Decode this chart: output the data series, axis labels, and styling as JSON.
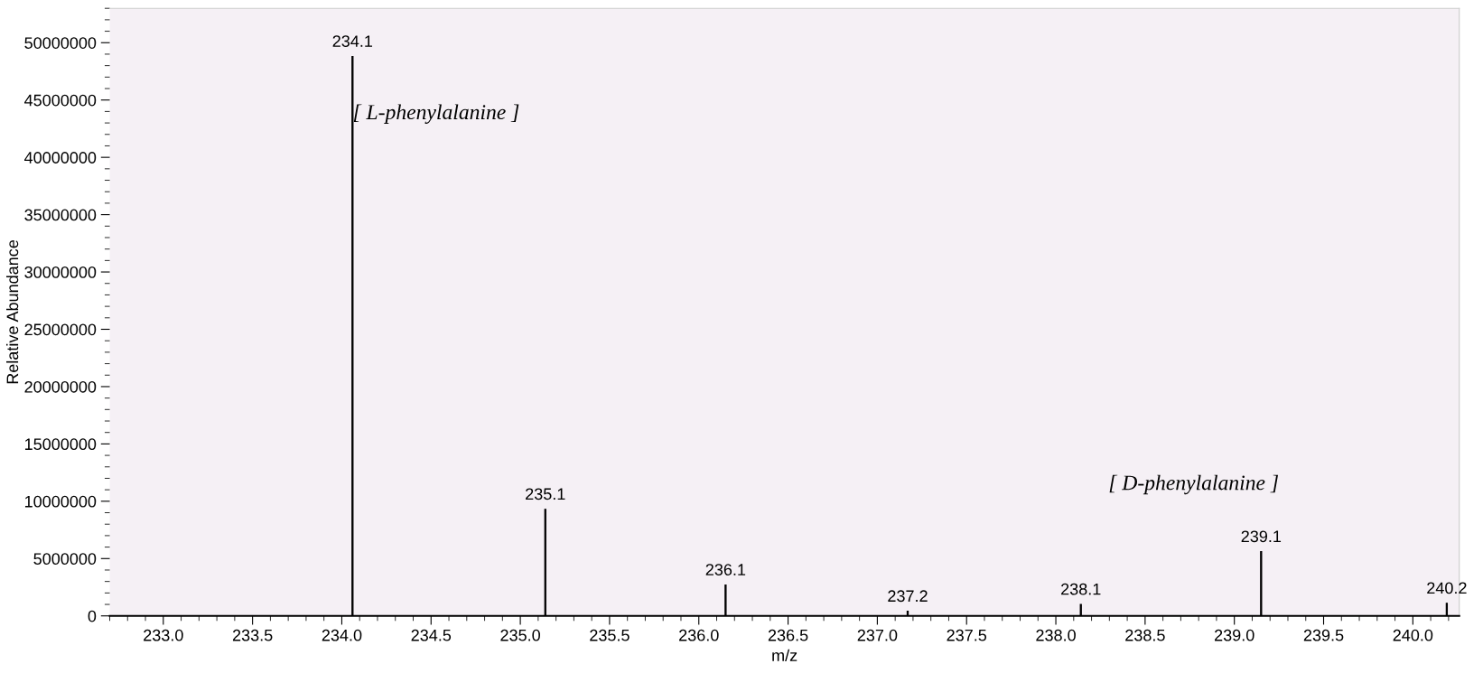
{
  "chart_data": {
    "type": "bar",
    "xlabel": "m/z",
    "ylabel": "Relative Abundance",
    "x": [
      234.06,
      235.14,
      236.15,
      237.17,
      238.14,
      239.15,
      240.19
    ],
    "values": [
      48800000,
      9300000,
      2700000,
      400000,
      1000000,
      5600000,
      1100000
    ],
    "color": "#000000",
    "xlim": [
      232.7,
      240.26
    ],
    "xticks": [
      {
        "value": 233.0,
        "label": "233.0"
      },
      {
        "value": 233.5,
        "label": "233.5"
      },
      {
        "value": 234.0,
        "label": "234.0"
      },
      {
        "value": 234.5,
        "label": "234.5"
      },
      {
        "value": 235.0,
        "label": "235.0"
      },
      {
        "value": 235.5,
        "label": "235.5"
      },
      {
        "value": 236.0,
        "label": "236.0"
      },
      {
        "value": 236.5,
        "label": "236.5"
      },
      {
        "value": 237.0,
        "label": "237.0"
      },
      {
        "value": 237.5,
        "label": "237.5"
      },
      {
        "value": 238.0,
        "label": "238.0"
      },
      {
        "value": 238.5,
        "label": "238.5"
      },
      {
        "value": 239.0,
        "label": "239.0"
      },
      {
        "value": 239.5,
        "label": "239.5"
      },
      {
        "value": 240.0,
        "label": "240.0"
      }
    ],
    "ylim": [
      0,
      53000000
    ],
    "yticks": [
      0,
      5000000,
      10000000,
      15000000,
      20000000,
      25000000,
      30000000,
      35000000,
      40000000,
      45000000,
      50000000
    ],
    "annotations": [
      "[ L-phenylalanine ]",
      "[ D-phenylalanine ]",
      {
        "text": "234.1",
        "x": 234.06,
        "y": 48800000
      },
      {
        "text": "235.1",
        "x": 235.14,
        "y": 9300000
      },
      {
        "text": "236.1",
        "x": 236.15,
        "y": 2700000
      },
      {
        "text": "237.2",
        "x": 237.17,
        "y": 400000
      },
      {
        "text": "238.1",
        "x": 238.14,
        "y": 1000000
      },
      {
        "text": "239.1",
        "x": 239.15,
        "y": 5600000
      },
      {
        "text": "240.2",
        "x": 240.19,
        "y": 1100000
      }
    ],
    "grid": false
  }
}
